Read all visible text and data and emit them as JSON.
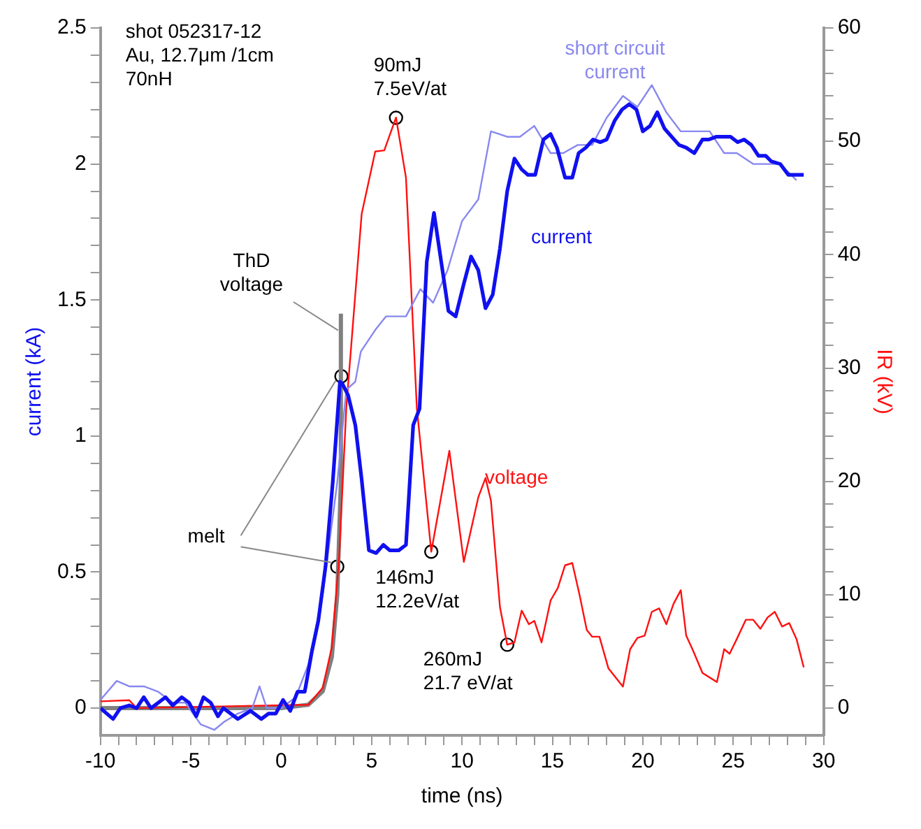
{
  "chart_data": {
    "type": "line",
    "xlabel": "time (ns)",
    "ylabel": "current (kA)",
    "y2label": "IR (kV)",
    "xlim": [
      -10,
      30
    ],
    "xticks": [
      -10,
      {
        "value": -9,
        "label": null
      },
      {
        "value": -8,
        "label": null
      },
      {
        "value": -7,
        "label": null
      },
      {
        "value": -6,
        "label": null
      },
      -5,
      {
        "value": -4,
        "label": null
      },
      {
        "value": -3,
        "label": null
      },
      {
        "value": -2,
        "label": null
      },
      {
        "value": -1,
        "label": null
      },
      0,
      {
        "value": 1,
        "label": null
      },
      {
        "value": 2,
        "label": null
      },
      {
        "value": 3,
        "label": null
      },
      {
        "value": 4,
        "label": null
      },
      5,
      {
        "value": 6,
        "label": null
      },
      {
        "value": 7,
        "label": null
      },
      {
        "value": 8,
        "label": null
      },
      {
        "value": 9,
        "label": null
      },
      10,
      {
        "value": 11,
        "label": null
      },
      {
        "value": 12,
        "label": null
      },
      {
        "value": 13,
        "label": null
      },
      {
        "value": 14,
        "label": null
      },
      15,
      {
        "value": 16,
        "label": null
      },
      {
        "value": 17,
        "label": null
      },
      {
        "value": 18,
        "label": null
      },
      {
        "value": 19,
        "label": null
      },
      20,
      {
        "value": 21,
        "label": null
      },
      {
        "value": 22,
        "label": null
      },
      {
        "value": 23,
        "label": null
      },
      {
        "value": 24,
        "label": null
      },
      25,
      {
        "value": 26,
        "label": null
      },
      {
        "value": 27,
        "label": null
      },
      {
        "value": 28,
        "label": null
      },
      {
        "value": 29,
        "label": null
      },
      30
    ],
    "ylim": [
      -0.1,
      2.5
    ],
    "yticks": [
      0,
      {
        "value": 0.1,
        "label": null
      },
      {
        "value": 0.2,
        "label": null
      },
      {
        "value": 0.3,
        "label": null
      },
      {
        "value": 0.4,
        "label": null
      },
      0.5,
      {
        "value": 0.6,
        "label": null
      },
      {
        "value": 0.7,
        "label": null
      },
      {
        "value": 0.8,
        "label": null
      },
      {
        "value": 0.9,
        "label": null
      },
      1,
      {
        "value": 1.1,
        "label": null
      },
      {
        "value": 1.2,
        "label": null
      },
      {
        "value": 1.3,
        "label": null
      },
      {
        "value": 1.4,
        "label": null
      },
      1.5,
      {
        "value": 1.6,
        "label": null
      },
      {
        "value": 1.7,
        "label": null
      },
      {
        "value": 1.8,
        "label": null
      },
      {
        "value": 1.9,
        "label": null
      },
      2,
      {
        "value": 2.1,
        "label": null
      },
      {
        "value": 2.2,
        "label": null
      },
      {
        "value": 2.3,
        "label": null
      },
      {
        "value": 2.4,
        "label": null
      },
      2.5
    ],
    "y2lim": [
      -2.4,
      60
    ],
    "y2ticks": [
      0,
      {
        "value": 2,
        "label": null
      },
      {
        "value": 4,
        "label": null
      },
      {
        "value": 6,
        "label": null
      },
      {
        "value": 8,
        "label": null
      },
      10,
      {
        "value": 12,
        "label": null
      },
      {
        "value": 14,
        "label": null
      },
      {
        "value": 16,
        "label": null
      },
      {
        "value": 18,
        "label": null
      },
      20,
      {
        "value": 22,
        "label": null
      },
      {
        "value": 24,
        "label": null
      },
      {
        "value": 26,
        "label": null
      },
      {
        "value": 28,
        "label": null
      },
      30,
      {
        "value": 32,
        "label": null
      },
      {
        "value": 34,
        "label": null
      },
      {
        "value": 36,
        "label": null
      },
      {
        "value": 38,
        "label": null
      },
      40,
      {
        "value": 42,
        "label": null
      },
      {
        "value": 44,
        "label": null
      },
      {
        "value": 46,
        "label": null
      },
      {
        "value": 48,
        "label": null
      },
      50,
      {
        "value": 52,
        "label": null
      },
      {
        "value": 54,
        "label": null
      },
      {
        "value": 56,
        "label": null
      },
      {
        "value": 58,
        "label": null
      },
      60
    ],
    "grid": false,
    "legend": false,
    "marker": "none",
    "line_style": "solid",
    "series": [
      {
        "name": "current",
        "color": "#1010f0",
        "x": [
          -10,
          -9.3,
          -8.9,
          -8.4,
          -8,
          -7.6,
          -7.2,
          -6.4,
          -6,
          -5.5,
          -5.1,
          -4.7,
          -4.3,
          -3.9,
          -3.5,
          -3.2,
          -2.4,
          -1.7,
          -1.1,
          -0.7,
          -0.3,
          0.1,
          0.5,
          0.9,
          1.3,
          1.7,
          2.05,
          2.45,
          2.85,
          3.25,
          3.4,
          3.7,
          4.1,
          4.45,
          4.85,
          5.25,
          5.65,
          6,
          6.5,
          6.9,
          7.3,
          7.65,
          8.05,
          8.45,
          8.85,
          9.25,
          9.65,
          10.1,
          10.5,
          10.9,
          11.3,
          11.7,
          12.1,
          12.5,
          12.9,
          13.3,
          13.65,
          14.05,
          14.5,
          14.9,
          15.25,
          15.7,
          16.1,
          16.45,
          16.85,
          17.25,
          17.65,
          18,
          18.45,
          18.85,
          19.25,
          19.65,
          20,
          20.4,
          20.8,
          21.2,
          21.6,
          22,
          22.4,
          22.85,
          23.3,
          23.65,
          24.05,
          24.85,
          25.25,
          25.6,
          26,
          26.4,
          26.8,
          27.1,
          27.6,
          28.05,
          28.9
        ],
        "values": [
          0,
          -0.04,
          0,
          0.01,
          0,
          0.04,
          0,
          0.04,
          0.01,
          0.04,
          0.02,
          -0.03,
          0.04,
          0.02,
          -0.03,
          0,
          -0.04,
          -0.01,
          -0.04,
          -0.02,
          -0.02,
          0.03,
          -0.01,
          0.06,
          0.06,
          0.21,
          0.32,
          0.52,
          0.83,
          1.2,
          1.19,
          1.15,
          1.04,
          0.84,
          0.58,
          0.57,
          0.6,
          0.58,
          0.58,
          0.6,
          1.04,
          1.1,
          1.64,
          1.82,
          1.64,
          1.46,
          1.44,
          1.56,
          1.66,
          1.61,
          1.47,
          1.52,
          1.69,
          1.9,
          2.02,
          1.98,
          1.96,
          1.96,
          2.09,
          2.11,
          2.06,
          1.95,
          1.95,
          2.04,
          2.06,
          2.09,
          2.08,
          2.09,
          2.16,
          2.2,
          2.22,
          2.2,
          2.12,
          2.14,
          2.19,
          2.13,
          2.1,
          2.07,
          2.06,
          2.04,
          2.09,
          2.09,
          2.1,
          2.1,
          2.08,
          2.09,
          2.07,
          2.03,
          2.03,
          2.01,
          2.0,
          1.96,
          1.96
        ]
      },
      {
        "name": "short circuit current",
        "color": "#8888f0",
        "x": [
          -10,
          -9.1,
          -8.4,
          -7.6,
          -6.8,
          -6,
          -5.3,
          -4.45,
          -3.7,
          -3.15,
          -2.4,
          -1.6,
          -1.2,
          -0.8,
          0,
          0.8,
          1.5,
          2.3,
          3.1,
          3.6,
          4.1,
          4.4,
          5.2,
          5.8,
          6.9,
          7.7,
          8.4,
          9.2,
          10,
          10.9,
          11.6,
          12.5,
          13.2,
          14,
          14.9,
          15.6,
          16.4,
          17.2,
          18,
          18.9,
          19.7,
          20.5,
          21.3,
          22.1,
          23.7,
          24.5,
          25.2,
          26.1,
          27.6,
          28.5
        ],
        "values": [
          0.03,
          0.1,
          0.08,
          0.08,
          0.06,
          0.02,
          0.02,
          -0.06,
          -0.08,
          -0.05,
          -0.02,
          0,
          0.08,
          0,
          0,
          0.04,
          0.16,
          0.42,
          0.83,
          1.17,
          1.2,
          1.31,
          1.39,
          1.44,
          1.44,
          1.54,
          1.49,
          1.61,
          1.79,
          1.87,
          2.12,
          2.1,
          2.1,
          2.14,
          2.04,
          2.04,
          2.07,
          2.07,
          2.17,
          2.25,
          2.21,
          2.29,
          2.19,
          2.12,
          2.12,
          2.04,
          2.04,
          2.0,
          2.0,
          1.94
        ]
      },
      {
        "name": "voltage",
        "color": "#ff1010",
        "axis": "y2",
        "x": [
          -10,
          -8.4,
          -8,
          1.5,
          2.3,
          2.8,
          3.2,
          3.6,
          4.45,
          5.2,
          5.7,
          6.35,
          6.9,
          7.5,
          8.3,
          9.3,
          10.1,
          10.9,
          11.3,
          11.6,
          12.1,
          12.5,
          12.9,
          13.3,
          13.7,
          14.0,
          14.4,
          14.9,
          15.3,
          15.7,
          16.1,
          16.5,
          16.9,
          17.2,
          17.6,
          18.1,
          18.9,
          19.3,
          19.7,
          20.1,
          20.5,
          20.9,
          21.3,
          21.7,
          22.1,
          22.4,
          22.8,
          23.3,
          24.1,
          24.5,
          24.8,
          25.2,
          25.7,
          26.1,
          26.5,
          26.9,
          27.3,
          27.7,
          28.1,
          28.5,
          28.9
        ],
        "values": [
          0.6,
          0.7,
          0,
          0.3,
          1.8,
          5.4,
          13.2,
          26.5,
          43.6,
          49.1,
          49.2,
          52.1,
          46.8,
          26.5,
          13.8,
          22.7,
          12.9,
          18.6,
          20.3,
          18.3,
          8.9,
          5.6,
          5.8,
          8.6,
          7.4,
          7.7,
          5.8,
          9.5,
          10.6,
          12.6,
          12.8,
          10,
          6.9,
          6.3,
          6.3,
          3.5,
          1.9,
          5.2,
          6.2,
          6.4,
          8.5,
          8.8,
          7.4,
          9.2,
          10.4,
          6.4,
          5,
          3.1,
          2.3,
          5.2,
          4.8,
          6.1,
          7.8,
          7.8,
          7,
          8,
          8.5,
          7.2,
          7.5,
          6.1,
          3.6
        ]
      },
      {
        "name": "ThD voltage",
        "color": "#808080",
        "axis": "y2",
        "x": [
          -10,
          0,
          1.5,
          2.3,
          2.8,
          3.1,
          3.3,
          3.3
        ],
        "values": [
          0,
          0,
          0.3,
          1.5,
          4.5,
          10,
          20,
          34.8
        ]
      },
      {
        "type": "scatter",
        "color": "#000000",
        "marker": "circle",
        "x": [
          3.33,
          3.1,
          6.35,
          8.3,
          12.5
        ],
        "values": [
          1.22,
          0.52,
          2.17,
          0.575,
          0.233
        ]
      }
    ],
    "annotations": [
      "shot 052317-12\nAu, 12.7μm /1cm\n70nH",
      {
        "text": "melt",
        "x": 3.33,
        "y": 1.22
      },
      {
        "text": "90mJ\n7.5eV/at",
        "x": 6.35,
        "y": 2.17
      },
      {
        "text": "146mJ\n12.2eV/at",
        "x": 8.3,
        "y": 0.575
      },
      {
        "text": "260mJ\n21.7 eV/at",
        "x": 12.5,
        "y": 0.233
      }
    ]
  }
}
